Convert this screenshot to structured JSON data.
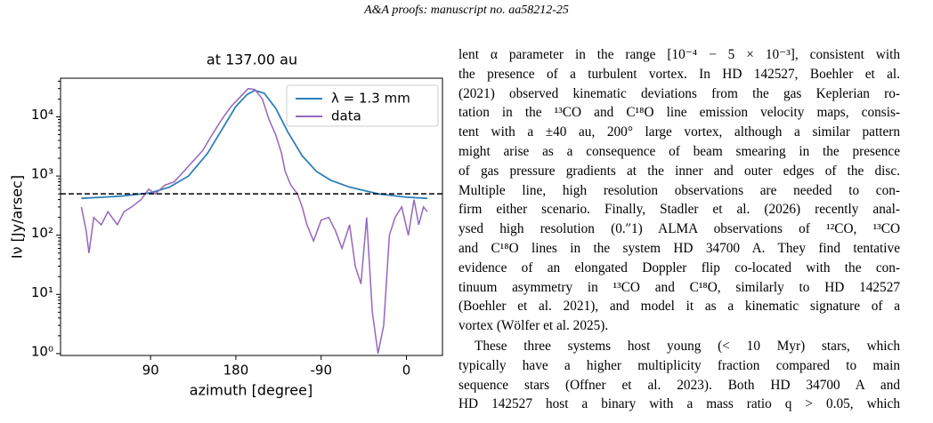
{
  "header": {
    "title": "A&A proofs: manuscript no. aa58212-25"
  },
  "chart_data": {
    "type": "line",
    "title": "at 137.00 au",
    "xlabel": "azimuth [degree]",
    "ylabel": "Iν [Jy/arsec]",
    "xlim": [
      -5,
      398
    ],
    "xticks": [
      90,
      180,
      {
        "value": 270,
        "label": "-90"
      },
      {
        "value": 360,
        "label": "0"
      }
    ],
    "ylim": [
      0.93,
      45000
    ],
    "log_y": true,
    "yticks": [
      {
        "value": 1,
        "label": "10⁰"
      },
      {
        "value": 10,
        "label": "10¹"
      },
      {
        "value": 100,
        "label": "10²"
      },
      {
        "value": 1000,
        "label": "10³"
      },
      {
        "value": 10000,
        "label": "10⁴"
      }
    ],
    "hline": 500,
    "legend": "upper right",
    "series": [
      {
        "name": "λ = 1.3 mm",
        "color": "#2e7fb8",
        "x": [
          17,
          40,
          60,
          90,
          110,
          130,
          150,
          165,
          180,
          192,
          200,
          210,
          222,
          235,
          250,
          265,
          280,
          300,
          330,
          360,
          382
        ],
        "values": [
          420,
          440,
          460,
          520,
          650,
          1000,
          2400,
          6000,
          15000,
          24000,
          28000,
          25000,
          14000,
          5500,
          2200,
          1200,
          850,
          650,
          500,
          440,
          420
        ]
      },
      {
        "name": "data",
        "color": "#9467bd",
        "x": [
          17,
          22,
          25,
          30,
          38,
          45,
          55,
          62,
          70,
          80,
          88,
          95,
          105,
          115,
          125,
          135,
          145,
          155,
          165,
          175,
          185,
          193,
          200,
          208,
          215,
          222,
          228,
          232,
          238,
          245,
          250,
          255,
          262,
          270,
          278,
          285,
          292,
          300,
          306,
          312,
          318,
          324,
          330,
          336,
          342,
          348,
          355,
          362,
          368,
          373,
          378,
          382
        ],
        "values": [
          300,
          120,
          50,
          200,
          150,
          250,
          150,
          250,
          300,
          400,
          600,
          500,
          700,
          800,
          1200,
          1800,
          2700,
          5000,
          9000,
          15000,
          22000,
          30000,
          29000,
          20000,
          9000,
          5000,
          2500,
          1200,
          700,
          500,
          300,
          150,
          80,
          180,
          200,
          120,
          60,
          150,
          30,
          15,
          200,
          5,
          1,
          3,
          100,
          200,
          300,
          100,
          400,
          150,
          300,
          250
        ]
      }
    ]
  },
  "text": {
    "paragraphs": [
      [
        "lent α parameter in the range [10⁻⁴ − 5 × 10⁻³], consistent with",
        "the presence of a turbulent vortex. In HD 142527, Boehler et al.",
        "(2021) observed kinematic deviations from the gas Keplerian ro-",
        "tation in the ¹³CO and C¹⁸O line emission velocity maps, consis-",
        "tent with a ±40 au, 200° large vortex, although a similar pattern",
        "might arise as a consequence of beam smearing in the presence",
        "of gas pressure gradients at the inner and outer edges of the disc.",
        "Multiple line, high resolution observations are needed to con-",
        "firm either scenario. Finally, Stadler et al. (2026) recently anal-",
        "ysed high resolution (0.″1) ALMA observations of ¹²CO, ¹³CO",
        "and C¹⁸O lines in the system HD 34700 A. They find tentative",
        "evidence of an elongated Doppler flip co-located with the con-",
        "tinuum asymmetry in ¹³CO and C¹⁸O, similarly to HD 142527",
        "(Boehler et al. 2021), and model it as a kinematic signature of a",
        "vortex (Wölfer et al. 2025)."
      ],
      [
        "These three systems host young (< 10 Myr) stars, which",
        "typically have a higher multiplicity fraction compared to main",
        "sequence stars (Offner et al. 2023). Both HD 34700 A and",
        "HD 142527 host a binary with a mass ratio q > 0.05, which"
      ]
    ]
  }
}
